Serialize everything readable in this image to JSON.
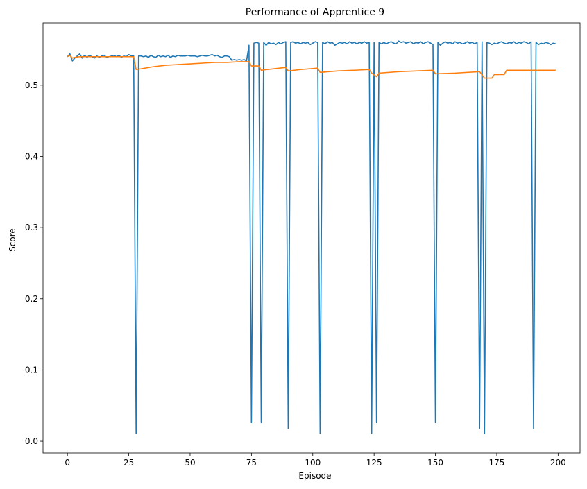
{
  "chart_data": {
    "type": "line",
    "title": "Performance of Apprentice 9",
    "xlabel": "Episode",
    "ylabel": "Score",
    "xlim": [
      -9.95,
      208.95
    ],
    "ylim": [
      -0.0165,
      0.5875
    ],
    "xticks": [
      0,
      25,
      50,
      75,
      100,
      125,
      150,
      175,
      200
    ],
    "yticks": [
      0.0,
      0.1,
      0.2,
      0.3,
      0.4,
      0.5
    ],
    "ytick_labels": [
      "0.0",
      "0.1",
      "0.2",
      "0.3",
      "0.4",
      "0.5"
    ],
    "grid": false,
    "legend": "none",
    "series": [
      {
        "color": "#1f77b4",
        "points": [
          [
            0,
            0.54
          ],
          [
            1,
            0.544
          ],
          [
            2,
            0.534
          ],
          [
            3,
            0.538
          ],
          [
            4,
            0.541
          ],
          [
            5,
            0.544
          ],
          [
            6,
            0.538
          ],
          [
            7,
            0.542
          ],
          [
            8,
            0.539
          ],
          [
            9,
            0.542
          ],
          [
            10,
            0.54
          ],
          [
            11,
            0.538
          ],
          [
            12,
            0.541
          ],
          [
            13,
            0.539
          ],
          [
            14,
            0.541
          ],
          [
            15,
            0.542
          ],
          [
            16,
            0.539
          ],
          [
            17,
            0.54
          ],
          [
            18,
            0.541
          ],
          [
            19,
            0.542
          ],
          [
            20,
            0.54
          ],
          [
            21,
            0.542
          ],
          [
            22,
            0.539
          ],
          [
            23,
            0.541
          ],
          [
            24,
            0.54
          ],
          [
            25,
            0.543
          ],
          [
            26,
            0.541
          ],
          [
            27,
            0.541
          ],
          [
            28,
            0.011
          ],
          [
            29,
            0.541
          ],
          [
            30,
            0.541
          ],
          [
            31,
            0.54
          ],
          [
            32,
            0.541
          ],
          [
            33,
            0.539
          ],
          [
            34,
            0.542
          ],
          [
            35,
            0.54
          ],
          [
            36,
            0.539
          ],
          [
            37,
            0.542
          ],
          [
            38,
            0.54
          ],
          [
            39,
            0.541
          ],
          [
            40,
            0.54
          ],
          [
            41,
            0.542
          ],
          [
            42,
            0.539
          ],
          [
            43,
            0.541
          ],
          [
            44,
            0.54
          ],
          [
            45,
            0.542
          ],
          [
            46,
            0.541
          ],
          [
            47,
            0.541
          ],
          [
            48,
            0.541
          ],
          [
            49,
            0.542
          ],
          [
            50,
            0.541
          ],
          [
            51,
            0.541
          ],
          [
            52,
            0.541
          ],
          [
            53,
            0.54
          ],
          [
            54,
            0.541
          ],
          [
            55,
            0.542
          ],
          [
            56,
            0.541
          ],
          [
            57,
            0.541
          ],
          [
            58,
            0.542
          ],
          [
            59,
            0.543
          ],
          [
            60,
            0.541
          ],
          [
            61,
            0.542
          ],
          [
            62,
            0.54
          ],
          [
            63,
            0.539
          ],
          [
            64,
            0.541
          ],
          [
            65,
            0.541
          ],
          [
            66,
            0.54
          ],
          [
            67,
            0.535
          ],
          [
            68,
            0.536
          ],
          [
            69,
            0.535
          ],
          [
            70,
            0.536
          ],
          [
            71,
            0.535
          ],
          [
            72,
            0.536
          ],
          [
            73,
            0.534
          ],
          [
            74,
            0.556
          ],
          [
            75,
            0.026
          ],
          [
            76,
            0.559
          ],
          [
            77,
            0.56
          ],
          [
            78,
            0.559
          ],
          [
            79,
            0.026
          ],
          [
            80,
            0.56
          ],
          [
            81,
            0.556
          ],
          [
            82,
            0.56
          ],
          [
            83,
            0.558
          ],
          [
            84,
            0.559
          ],
          [
            85,
            0.557
          ],
          [
            86,
            0.56
          ],
          [
            87,
            0.558
          ],
          [
            88,
            0.56
          ],
          [
            89,
            0.561
          ],
          [
            90,
            0.018
          ],
          [
            91,
            0.56
          ],
          [
            92,
            0.561
          ],
          [
            93,
            0.559
          ],
          [
            94,
            0.56
          ],
          [
            95,
            0.558
          ],
          [
            96,
            0.56
          ],
          [
            97,
            0.559
          ],
          [
            98,
            0.56
          ],
          [
            99,
            0.557
          ],
          [
            100,
            0.559
          ],
          [
            101,
            0.561
          ],
          [
            102,
            0.56
          ],
          [
            103,
            0.011
          ],
          [
            104,
            0.56
          ],
          [
            105,
            0.558
          ],
          [
            106,
            0.561
          ],
          [
            107,
            0.559
          ],
          [
            108,
            0.56
          ],
          [
            109,
            0.556
          ],
          [
            110,
            0.558
          ],
          [
            111,
            0.56
          ],
          [
            112,
            0.559
          ],
          [
            113,
            0.56
          ],
          [
            114,
            0.558
          ],
          [
            115,
            0.561
          ],
          [
            116,
            0.559
          ],
          [
            117,
            0.56
          ],
          [
            118,
            0.558
          ],
          [
            119,
            0.56
          ],
          [
            120,
            0.559
          ],
          [
            121,
            0.561
          ],
          [
            122,
            0.559
          ],
          [
            123,
            0.56
          ],
          [
            124,
            0.011
          ],
          [
            125,
            0.56
          ],
          [
            126,
            0.026
          ],
          [
            127,
            0.56
          ],
          [
            128,
            0.558
          ],
          [
            129,
            0.56
          ],
          [
            130,
            0.558
          ],
          [
            131,
            0.56
          ],
          [
            132,
            0.561
          ],
          [
            133,
            0.559
          ],
          [
            134,
            0.558
          ],
          [
            135,
            0.562
          ],
          [
            136,
            0.56
          ],
          [
            137,
            0.561
          ],
          [
            138,
            0.559
          ],
          [
            139,
            0.56
          ],
          [
            140,
            0.561
          ],
          [
            141,
            0.558
          ],
          [
            142,
            0.56
          ],
          [
            143,
            0.559
          ],
          [
            144,
            0.561
          ],
          [
            145,
            0.558
          ],
          [
            146,
            0.56
          ],
          [
            147,
            0.561
          ],
          [
            148,
            0.559
          ],
          [
            149,
            0.557
          ],
          [
            150,
            0.026
          ],
          [
            151,
            0.56
          ],
          [
            152,
            0.556
          ],
          [
            153,
            0.559
          ],
          [
            154,
            0.561
          ],
          [
            155,
            0.559
          ],
          [
            156,
            0.56
          ],
          [
            157,
            0.558
          ],
          [
            158,
            0.561
          ],
          [
            159,
            0.559
          ],
          [
            160,
            0.56
          ],
          [
            161,
            0.558
          ],
          [
            162,
            0.559
          ],
          [
            163,
            0.561
          ],
          [
            164,
            0.559
          ],
          [
            165,
            0.56
          ],
          [
            166,
            0.558
          ],
          [
            167,
            0.56
          ],
          [
            168,
            0.018
          ],
          [
            169,
            0.561
          ],
          [
            170,
            0.011
          ],
          [
            171,
            0.56
          ],
          [
            172,
            0.559
          ],
          [
            173,
            0.557
          ],
          [
            174,
            0.559
          ],
          [
            175,
            0.558
          ],
          [
            176,
            0.56
          ],
          [
            177,
            0.561
          ],
          [
            178,
            0.559
          ],
          [
            179,
            0.558
          ],
          [
            180,
            0.56
          ],
          [
            181,
            0.559
          ],
          [
            182,
            0.561
          ],
          [
            183,
            0.558
          ],
          [
            184,
            0.56
          ],
          [
            185,
            0.559
          ],
          [
            186,
            0.561
          ],
          [
            187,
            0.56
          ],
          [
            188,
            0.558
          ],
          [
            189,
            0.561
          ],
          [
            190,
            0.018
          ],
          [
            191,
            0.56
          ],
          [
            192,
            0.557
          ],
          [
            193,
            0.559
          ],
          [
            194,
            0.558
          ],
          [
            195,
            0.56
          ],
          [
            196,
            0.559
          ],
          [
            197,
            0.557
          ],
          [
            198,
            0.559
          ],
          [
            199,
            0.558
          ]
        ]
      },
      {
        "color": "#ff7f0e",
        "points": [
          [
            0,
            0.54
          ],
          [
            1,
            0.542
          ],
          [
            2,
            0.538
          ],
          [
            3,
            0.539
          ],
          [
            5,
            0.54
          ],
          [
            10,
            0.54
          ],
          [
            15,
            0.54
          ],
          [
            20,
            0.54
          ],
          [
            25,
            0.54
          ],
          [
            27,
            0.54
          ],
          [
            28,
            0.522
          ],
          [
            30,
            0.523
          ],
          [
            35,
            0.526
          ],
          [
            40,
            0.528
          ],
          [
            45,
            0.529
          ],
          [
            50,
            0.53
          ],
          [
            55,
            0.531
          ],
          [
            60,
            0.532
          ],
          [
            65,
            0.532
          ],
          [
            70,
            0.533
          ],
          [
            74,
            0.533
          ],
          [
            75,
            0.527
          ],
          [
            78,
            0.527
          ],
          [
            79,
            0.521
          ],
          [
            84,
            0.523
          ],
          [
            89,
            0.525
          ],
          [
            90,
            0.52
          ],
          [
            95,
            0.522
          ],
          [
            102,
            0.524
          ],
          [
            103,
            0.518
          ],
          [
            110,
            0.52
          ],
          [
            117,
            0.521
          ],
          [
            123,
            0.522
          ],
          [
            124,
            0.517
          ],
          [
            126,
            0.512
          ],
          [
            127,
            0.517
          ],
          [
            135,
            0.519
          ],
          [
            142,
            0.52
          ],
          [
            149,
            0.521
          ],
          [
            150,
            0.516
          ],
          [
            158,
            0.517
          ],
          [
            168,
            0.519
          ],
          [
            170,
            0.51
          ],
          [
            173,
            0.51
          ],
          [
            174,
            0.515
          ],
          [
            178,
            0.515
          ],
          [
            179,
            0.521
          ],
          [
            199,
            0.521
          ]
        ]
      }
    ]
  }
}
